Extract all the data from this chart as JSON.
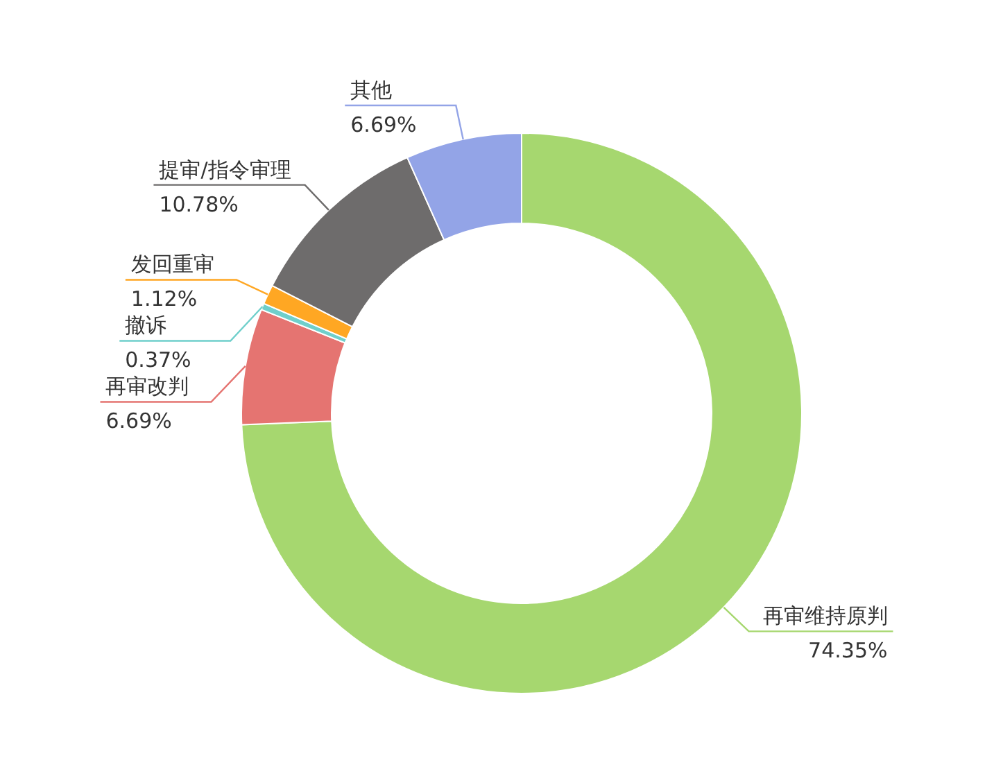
{
  "chart_data": {
    "type": "donut",
    "categories": [
      "再审维持原判",
      "再审改判",
      "撤诉",
      "发回重审",
      "提审/指令审理",
      "其他"
    ],
    "values": [
      74.35,
      6.69,
      0.37,
      1.12,
      10.78,
      6.69
    ],
    "value_labels": [
      "74.35%",
      "6.69%",
      "0.37%",
      "1.12%",
      "10.78%",
      "6.69%"
    ],
    "colors": [
      "#a6d76f",
      "#e57471",
      "#6fcfcb",
      "#ffa723",
      "#6e6c6c",
      "#93a4e7"
    ],
    "legend": false
  }
}
